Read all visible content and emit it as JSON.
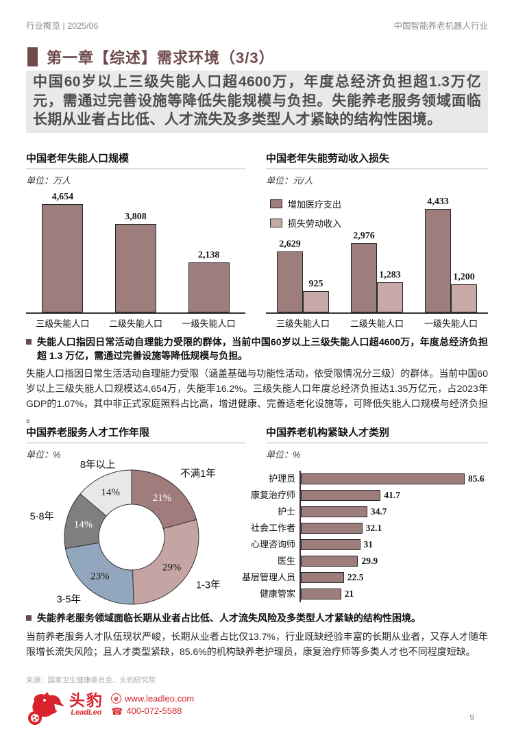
{
  "header": {
    "left": "行业概览 | 2025/06",
    "right": "中国智能养老机器人行业"
  },
  "page_title": "第一章【综述】需求环境（3/3）",
  "highlight_text": "中国60岁以上三级失能人口超4600万，年度总经济负担超1.3万亿元，需通过完善设施等降低失能规模与负担。失能养老服务领域面临长期从业者占比低、人才流失及多类型人才紧缺的结构性困境。",
  "colors": {
    "accent_maroon": "#6e4a4c",
    "bar_dark": "#9d7e7c",
    "bar_light": "#c7a9a7",
    "bar_border": "#262626",
    "highlight_bg": "#e9e9e9",
    "brand_red": "#d8232b"
  },
  "chart_data": [
    {
      "type": "bar",
      "title": "中国老年失能人口规模",
      "unit_prefix": "单位：",
      "unit": "万人",
      "categories": [
        "三级失能人口",
        "二级失能人口",
        "一级失能人口"
      ],
      "values": [
        4654,
        3808,
        2138
      ],
      "value_labels": [
        "4,654",
        "3,808",
        "2,138"
      ],
      "ylim": [
        0,
        5000
      ],
      "grid": false,
      "bar_color": "#9d7e7c"
    },
    {
      "type": "bar",
      "title": "中国老年失能劳动收入损失",
      "unit_prefix": "单位：",
      "unit": "元/人",
      "categories": [
        "三级失能人口",
        "二级失能人口",
        "一级失能人口"
      ],
      "series": [
        {
          "name": "增加医疗支出",
          "values": [
            2629,
            2976,
            4433
          ],
          "value_labels": [
            "2,629",
            "2,976",
            "4,433"
          ],
          "color": "#9d7e7c"
        },
        {
          "name": "损失劳动收入",
          "values": [
            925,
            1283,
            1200
          ],
          "value_labels": [
            "925",
            "1,283",
            "1,200"
          ],
          "color": "#c7a9a7"
        }
      ],
      "ylim": [
        0,
        5000
      ],
      "legend_position": "top-left",
      "grid": false
    },
    {
      "type": "pie",
      "donut": true,
      "title": "中国养老服务人才工作年限",
      "unit_prefix": "单位：",
      "unit": "%",
      "segments": [
        {
          "label": "不满1年",
          "value": 21,
          "pct_label": "21%",
          "color": "#a17c7c",
          "pct_color": "#ffffff"
        },
        {
          "label": "1-3年",
          "value": 29,
          "pct_label": "29%",
          "color": "#c5a5a3",
          "pct_color": "#1a1a1a"
        },
        {
          "label": "3-5年",
          "value": 23,
          "pct_label": "23%",
          "color": "#92a7bd",
          "pct_color": "#1a1a1a"
        },
        {
          "label": "5-8年",
          "value": 14,
          "pct_label": "14%",
          "color": "#7f7f7f",
          "pct_color": "#ffffff"
        },
        {
          "label": "8年以上",
          "value": 14,
          "pct_label": "14%",
          "color": "#e8e8e8",
          "pct_color": "#1a1a1a"
        }
      ]
    },
    {
      "type": "bar",
      "orientation": "horizontal",
      "title": "中国养老机构紧缺人才类别",
      "unit_prefix": "单位：",
      "unit": "%",
      "categories": [
        "护理员",
        "康复治疗师",
        "护士",
        "社会工作者",
        "心理咨询师",
        "医生",
        "基层管理人员",
        "健康管家"
      ],
      "values": [
        85.6,
        41.7,
        34.7,
        32.1,
        31,
        29.9,
        22.5,
        21
      ],
      "value_labels": [
        "85.6",
        "41.7",
        "34.7",
        "32.1",
        "31",
        "29.9",
        "22.5",
        "21"
      ],
      "xlim": [
        0,
        100
      ],
      "bar_color": "#9d7e7c"
    }
  ],
  "sections": [
    {
      "bullet": "失能人口指因日常活动自理能力受限的群体，当前中国60岁以上三级失能人口超4600万，年度总经济负担超 1.3 万亿，需通过完善设施等降低规模与负担。",
      "body": "失能人口指因日常生活活动自理能力受限（涵盖基础与功能性活动，依受限情况分三级）的群体。当前中国60岁以上三级失能人口规模达4,654万，失能率16.2%。三级失能人口年度总经济负担达1.35万亿元，占2023年GDP的1.07%，其中非正式家庭照料占比高，增进健康、完善适老化设施等，可降低失能人口规模与经济负担 。"
    },
    {
      "bullet": "失能养老服务领域面临长期从业者占比低、人才流失风险及多类型人才紧缺的结构性困境。",
      "body": "当前养老服务人才队伍现状严峻，长期从业者占比仅13.7%，行业既缺经验丰富的长期从业者，又存人才随年限增长流失风险；且人才类型紧缺，85.6%的机构缺养老护理员，康复治疗师等多类人才也不同程度短缺。"
    }
  ],
  "source": "来源：国家卫生健康委员会、头豹研究院",
  "footer": {
    "brand_cn": "头豹",
    "brand_en": "LeadLeo",
    "website": "www.leadleo.com",
    "phone": "400-072-5588"
  },
  "page_number": "9"
}
